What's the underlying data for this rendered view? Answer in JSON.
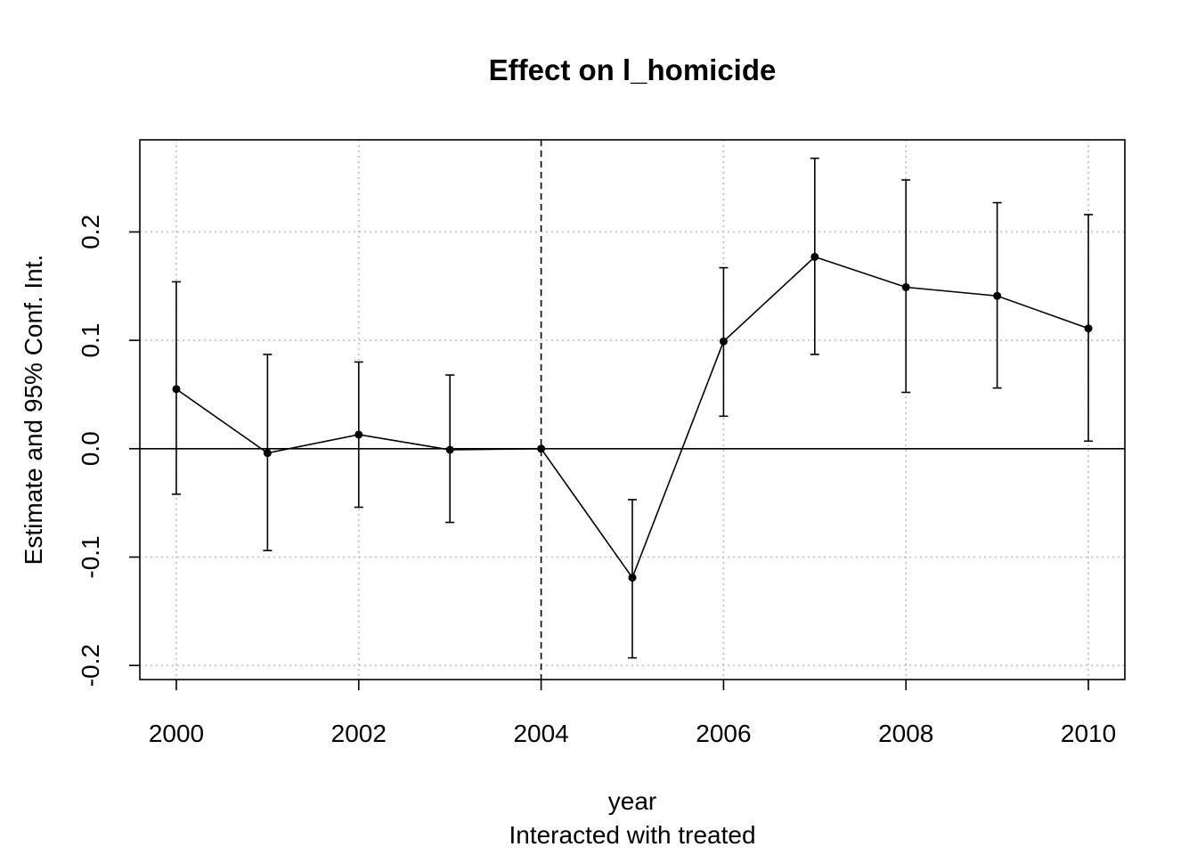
{
  "chart_data": {
    "type": "line",
    "title": "Effect on l_homicide",
    "xlabel": "year",
    "xsublabel": "Interacted with treated",
    "ylabel": "Estimate and 95% Conf. Int.",
    "x_ticks": [
      "2000",
      "2002",
      "2004",
      "2006",
      "2008",
      "2010"
    ],
    "y_ticks": [
      "-0.2",
      "-0.1",
      "0.0",
      "0.1",
      "0.2"
    ],
    "xlim": [
      1999.6,
      2010.4
    ],
    "ylim": [
      -0.213,
      0.285
    ],
    "grid": true,
    "reference_line_x": 2004,
    "reference_line_y": 0,
    "x": [
      2000,
      2001,
      2002,
      2003,
      2004,
      2005,
      2006,
      2007,
      2008,
      2009,
      2010
    ],
    "estimate": [
      0.055,
      -0.004,
      0.013,
      -0.001,
      0.0,
      -0.119,
      0.099,
      0.177,
      0.149,
      0.141,
      0.111
    ],
    "ci_low": [
      -0.042,
      -0.094,
      -0.054,
      -0.068,
      0.0,
      -0.193,
      0.03,
      0.087,
      0.052,
      0.056,
      0.007
    ],
    "ci_high": [
      0.154,
      0.087,
      0.08,
      0.068,
      0.0,
      -0.047,
      0.167,
      0.268,
      0.248,
      0.227,
      0.216
    ]
  }
}
